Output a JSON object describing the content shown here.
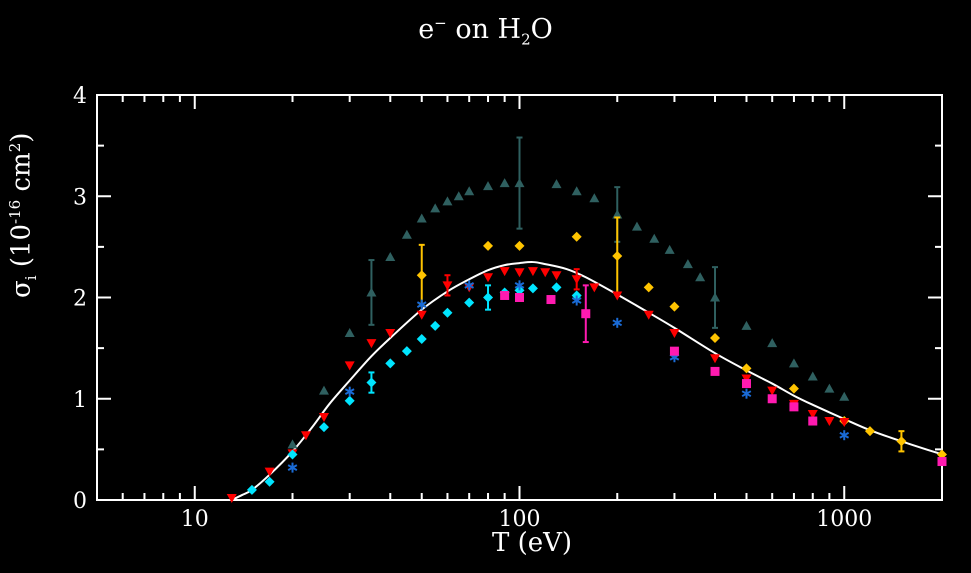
{
  "chart_data": {
    "type": "scatter",
    "title": {
      "base": "e",
      "sup": "−",
      "mid": " on H",
      "sub": "2",
      "end": "O"
    },
    "xlabel": "T (eV)",
    "ylabel": {
      "base": "σ",
      "sub": "i",
      "mid": " (10",
      "sup": "-16",
      "unit": " cm",
      "sup2": "2",
      "end": ")"
    },
    "xscale": "log",
    "xlim": [
      5,
      2000
    ],
    "ylim": [
      0,
      4
    ],
    "x_ticks": [
      10,
      100,
      1000
    ],
    "x_tick_labels": [
      "10",
      "100",
      "1000"
    ],
    "y_ticks": [
      0,
      1,
      2,
      3,
      4
    ],
    "y_tick_labels": [
      "0",
      "1",
      "2",
      "3",
      "4"
    ],
    "grid": false,
    "colors": {
      "background": "#000000",
      "axes": "#ffffff",
      "text": "#ffffff"
    },
    "curve": {
      "color": "#ffffff",
      "points": [
        [
          13,
          0
        ],
        [
          14,
          0.05
        ],
        [
          15,
          0.1
        ],
        [
          17,
          0.25
        ],
        [
          20,
          0.48
        ],
        [
          23,
          0.72
        ],
        [
          26,
          0.95
        ],
        [
          30,
          1.18
        ],
        [
          35,
          1.42
        ],
        [
          40,
          1.6
        ],
        [
          50,
          1.88
        ],
        [
          60,
          2.06
        ],
        [
          70,
          2.18
        ],
        [
          80,
          2.27
        ],
        [
          90,
          2.32
        ],
        [
          100,
          2.34
        ],
        [
          110,
          2.35
        ],
        [
          120,
          2.33
        ],
        [
          140,
          2.28
        ],
        [
          160,
          2.2
        ],
        [
          200,
          2.03
        ],
        [
          250,
          1.85
        ],
        [
          300,
          1.7
        ],
        [
          400,
          1.45
        ],
        [
          500,
          1.28
        ],
        [
          600,
          1.15
        ],
        [
          700,
          1.03
        ],
        [
          800,
          0.94
        ],
        [
          1000,
          0.8
        ],
        [
          1200,
          0.69
        ],
        [
          1500,
          0.58
        ],
        [
          2000,
          0.45
        ]
      ]
    },
    "series": [
      {
        "marker": "triangle-up",
        "color": "#2f6060",
        "points": [
          [
            20,
            0.55
          ],
          [
            25,
            1.08
          ],
          [
            30,
            1.65
          ],
          [
            35,
            2.05
          ],
          [
            40,
            2.4
          ],
          [
            45,
            2.62
          ],
          [
            50,
            2.78
          ],
          [
            55,
            2.88
          ],
          [
            60,
            2.95
          ],
          [
            65,
            3.0
          ],
          [
            70,
            3.05
          ],
          [
            80,
            3.1
          ],
          [
            90,
            3.13
          ],
          [
            100,
            3.13
          ],
          [
            130,
            3.12
          ],
          [
            150,
            3.05
          ],
          [
            170,
            2.98
          ],
          [
            200,
            2.82
          ],
          [
            230,
            2.7
          ],
          [
            260,
            2.58
          ],
          [
            290,
            2.47
          ],
          [
            330,
            2.33
          ],
          [
            360,
            2.2
          ],
          [
            400,
            2.0
          ],
          [
            500,
            1.72
          ],
          [
            600,
            1.55
          ],
          [
            700,
            1.35
          ],
          [
            800,
            1.22
          ],
          [
            900,
            1.1
          ],
          [
            1000,
            1.02
          ]
        ],
        "errors": [
          [
            35,
            2.05,
            0.32
          ],
          [
            100,
            3.13,
            0.45
          ],
          [
            200,
            2.82,
            0.27
          ],
          [
            400,
            2.0,
            0.3
          ]
        ]
      },
      {
        "marker": "diamond",
        "color": "#ffc400",
        "points": [
          [
            50,
            2.22
          ],
          [
            80,
            2.51
          ],
          [
            100,
            2.51
          ],
          [
            150,
            2.6
          ],
          [
            200,
            2.41
          ],
          [
            250,
            2.1
          ],
          [
            300,
            1.91
          ],
          [
            400,
            1.6
          ],
          [
            500,
            1.3
          ],
          [
            700,
            1.1
          ],
          [
            1000,
            0.78
          ],
          [
            1200,
            0.68
          ],
          [
            1500,
            0.58
          ],
          [
            2000,
            0.45
          ]
        ],
        "errors": [
          [
            50,
            2.22,
            0.3
          ],
          [
            200,
            2.41,
            0.38
          ],
          [
            1500,
            0.58,
            0.1
          ]
        ]
      },
      {
        "marker": "triangle-down",
        "color": "#ff0000",
        "points": [
          [
            13,
            0.02
          ],
          [
            17,
            0.28
          ],
          [
            20,
            0.46
          ],
          [
            22,
            0.64
          ],
          [
            25,
            0.82
          ],
          [
            30,
            1.33
          ],
          [
            35,
            1.55
          ],
          [
            40,
            1.65
          ],
          [
            50,
            1.83
          ],
          [
            60,
            2.12
          ],
          [
            70,
            2.1
          ],
          [
            80,
            2.2
          ],
          [
            90,
            2.26
          ],
          [
            100,
            2.25
          ],
          [
            110,
            2.26
          ],
          [
            120,
            2.25
          ],
          [
            130,
            2.22
          ],
          [
            150,
            2.18
          ],
          [
            170,
            2.1
          ],
          [
            200,
            2.02
          ],
          [
            250,
            1.83
          ],
          [
            300,
            1.65
          ],
          [
            400,
            1.4
          ],
          [
            500,
            1.2
          ],
          [
            600,
            1.08
          ],
          [
            700,
            0.95
          ],
          [
            800,
            0.85
          ],
          [
            900,
            0.78
          ],
          [
            1000,
            0.77
          ]
        ],
        "errors": [
          [
            60,
            2.12,
            0.1
          ],
          [
            150,
            2.18,
            0.1
          ]
        ]
      },
      {
        "marker": "diamond",
        "color": "#00e5ff",
        "points": [
          [
            15,
            0.1
          ],
          [
            17,
            0.18
          ],
          [
            20,
            0.45
          ],
          [
            25,
            0.72
          ],
          [
            30,
            0.98
          ],
          [
            35,
            1.16
          ],
          [
            40,
            1.35
          ],
          [
            45,
            1.47
          ],
          [
            50,
            1.59
          ],
          [
            55,
            1.72
          ],
          [
            60,
            1.85
          ],
          [
            70,
            1.95
          ],
          [
            80,
            2.0
          ],
          [
            90,
            2.05
          ],
          [
            100,
            2.07
          ],
          [
            110,
            2.09
          ],
          [
            130,
            2.1
          ],
          [
            150,
            2.02
          ]
        ],
        "errors": [
          [
            35,
            1.16,
            0.1
          ],
          [
            80,
            2.0,
            0.12
          ]
        ]
      },
      {
        "marker": "asterisk",
        "color": "#1a6bd6",
        "points": [
          [
            20,
            0.32
          ],
          [
            30,
            1.07
          ],
          [
            50,
            1.93
          ],
          [
            70,
            2.12
          ],
          [
            100,
            2.12
          ],
          [
            150,
            1.97
          ],
          [
            200,
            1.75
          ],
          [
            300,
            1.41
          ],
          [
            500,
            1.05
          ],
          [
            1000,
            0.64
          ]
        ],
        "errors": []
      },
      {
        "marker": "square",
        "color": "#ff1ab0",
        "points": [
          [
            90,
            2.02
          ],
          [
            100,
            2.0
          ],
          [
            125,
            1.98
          ],
          [
            160,
            1.84
          ],
          [
            300,
            1.47
          ],
          [
            400,
            1.27
          ],
          [
            500,
            1.15
          ],
          [
            600,
            1.0
          ],
          [
            700,
            0.92
          ],
          [
            800,
            0.78
          ],
          [
            2000,
            0.38
          ]
        ],
        "errors": [
          [
            160,
            1.84,
            0.28
          ]
        ]
      }
    ]
  }
}
